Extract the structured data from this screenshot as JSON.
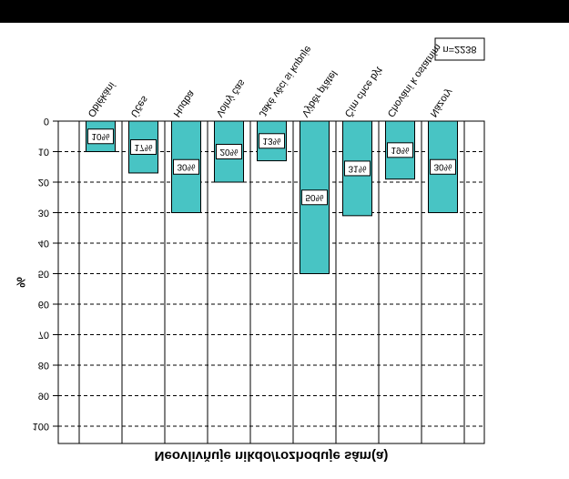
{
  "chart_data": {
    "type": "bar",
    "title": "Neovlivňuje nikdo/rozhoduje sám(a)",
    "ylabel": "%",
    "annotation": "n=2238",
    "categories": [
      "Oblékání",
      "Účes",
      "Hudba",
      "Volný čas",
      "Jaké věci si kupuje",
      "Výběr přátel",
      "Čím chce být",
      "Chování k ostatním",
      "Názory"
    ],
    "values": [
      10,
      17,
      30,
      20,
      13,
      50,
      31,
      19,
      30
    ],
    "value_labels": [
      "10%",
      "17%",
      "30%",
      "20%",
      "13%",
      "50%",
      "31%",
      "19%",
      "30%"
    ],
    "color": "#48c4c4",
    "ylim": [
      0,
      100
    ],
    "yticks": [
      0,
      10,
      20,
      30,
      40,
      50,
      60,
      70,
      80,
      90,
      100
    ],
    "y_inverted": true,
    "grid": true
  }
}
